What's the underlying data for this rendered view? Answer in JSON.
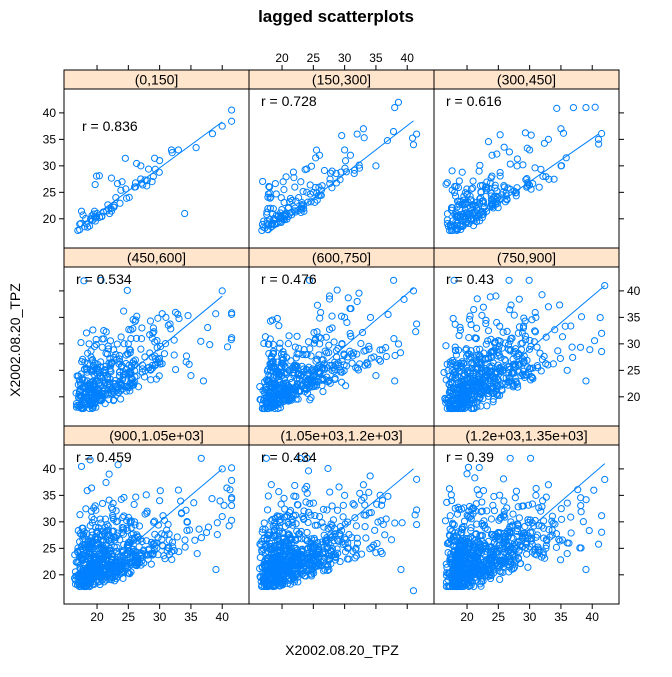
{
  "chart_data": {
    "type": "scatter",
    "title": "lagged scatterplots",
    "xlabel": "X2002.08.20_TPZ",
    "ylabel": "X2002.08.20_TPZ",
    "xlim": [
      16,
      43
    ],
    "ylim": [
      16,
      43
    ],
    "xticks": [
      20,
      25,
      30,
      35,
      40
    ],
    "yticks": [
      20,
      25,
      30,
      35,
      40
    ],
    "tick_labels": [
      "20",
      "25",
      "30",
      "35",
      "40"
    ],
    "grid": false,
    "colors": {
      "points": "#0080ff",
      "fit_line": "#0080ff",
      "strip_fill": "#ffe5cc",
      "frame": "#000000"
    },
    "panels": [
      {
        "strip": "(0,150]",
        "r_label": "r = 0.836",
        "r": 0.836,
        "n": 60,
        "seed": 11,
        "fit": {
          "x": [
            18,
            40
          ],
          "y": [
            19.2,
            38.3
          ]
        },
        "sample_points": [
          [
            18,
            18.5
          ],
          [
            19,
            20
          ],
          [
            20,
            21
          ],
          [
            21,
            21.3
          ],
          [
            22,
            21
          ],
          [
            23,
            24
          ],
          [
            24,
            27
          ],
          [
            26,
            26
          ],
          [
            27,
            30
          ],
          [
            29,
            28
          ],
          [
            30,
            31
          ],
          [
            32,
            32.5
          ],
          [
            33,
            33
          ],
          [
            34,
            21
          ],
          [
            40,
            37.5
          ]
        ]
      },
      {
        "strip": "(150,300]",
        "r_label": "r = 0.728",
        "r": 0.728,
        "n": 130,
        "seed": 23,
        "fit": {
          "x": [
            18,
            41
          ],
          "y": [
            17.5,
            38.5
          ]
        },
        "sample_points": [
          [
            18,
            26
          ],
          [
            20,
            20
          ],
          [
            21,
            22
          ],
          [
            23,
            27
          ],
          [
            25,
            25
          ],
          [
            26,
            32
          ],
          [
            28,
            29
          ],
          [
            30,
            33
          ],
          [
            32,
            36
          ],
          [
            33,
            37
          ],
          [
            35,
            30
          ],
          [
            38,
            41
          ],
          [
            41,
            34
          ]
        ]
      },
      {
        "strip": "(300,450]",
        "r_label": "r = 0.616",
        "r": 0.616,
        "n": 220,
        "seed": 37,
        "fit": {
          "x": [
            19,
            41
          ],
          "y": [
            18,
            36
          ]
        },
        "sample_points": [
          [
            19,
            18
          ],
          [
            21,
            20
          ],
          [
            22,
            23
          ],
          [
            24,
            32
          ],
          [
            26,
            26
          ],
          [
            28,
            30
          ],
          [
            30,
            33
          ],
          [
            33,
            35
          ],
          [
            35,
            37
          ],
          [
            37,
            41
          ],
          [
            39,
            41
          ],
          [
            41,
            35
          ]
        ]
      },
      {
        "strip": "(450,600]",
        "r_label": "r = 0.534",
        "r": 0.534,
        "n": 380,
        "seed": 41,
        "fit": {
          "x": [
            18,
            40
          ],
          "y": [
            17.5,
            39
          ]
        },
        "sample_points": [
          [
            18,
            19
          ],
          [
            19,
            21
          ],
          [
            21,
            23
          ],
          [
            23,
            28
          ],
          [
            25,
            30
          ],
          [
            27,
            29
          ],
          [
            29,
            33
          ],
          [
            31,
            35
          ],
          [
            35,
            24
          ],
          [
            37,
            23
          ],
          [
            40,
            40
          ]
        ]
      },
      {
        "strip": "(600,750]",
        "r_label": "r = 0.476",
        "r": 0.476,
        "n": 480,
        "seed": 53,
        "fit": {
          "x": [
            18,
            41
          ],
          "y": [
            17.5,
            40.5
          ]
        },
        "sample_points": [
          [
            18,
            20
          ],
          [
            20,
            22
          ],
          [
            22,
            26
          ],
          [
            24,
            28
          ],
          [
            26,
            30
          ],
          [
            28,
            33
          ],
          [
            30,
            35
          ],
          [
            32,
            38
          ],
          [
            35,
            24
          ],
          [
            38,
            23
          ],
          [
            41,
            40
          ]
        ]
      },
      {
        "strip": "(750,900]",
        "r_label": "r = 0.43",
        "r": 0.43,
        "n": 560,
        "seed": 61,
        "fit": {
          "x": [
            19,
            42
          ],
          "y": [
            18,
            41
          ]
        },
        "sample_points": [
          [
            19,
            19
          ],
          [
            21,
            22
          ],
          [
            23,
            27
          ],
          [
            25,
            29
          ],
          [
            27,
            31
          ],
          [
            29,
            33
          ],
          [
            31,
            35
          ],
          [
            33,
            37
          ],
          [
            36,
            25
          ],
          [
            39,
            23
          ],
          [
            42,
            41
          ]
        ]
      },
      {
        "strip": "(900,1.05e+03]",
        "r_label": "r = 0.459",
        "r": 0.459,
        "n": 640,
        "seed": 73,
        "fit": {
          "x": [
            18,
            40
          ],
          "y": [
            18,
            40
          ]
        },
        "sample_points": [
          [
            18,
            20
          ],
          [
            20,
            22
          ],
          [
            22,
            25
          ],
          [
            24,
            28
          ],
          [
            26,
            30
          ],
          [
            28,
            32
          ],
          [
            30,
            34
          ],
          [
            33,
            36
          ],
          [
            36,
            24
          ],
          [
            39,
            21
          ],
          [
            40,
            40
          ]
        ]
      },
      {
        "strip": "(1.05e+03,1.2e+03]",
        "r_label": "r = 0.434",
        "r": 0.434,
        "n": 700,
        "seed": 89,
        "fit": {
          "x": [
            18,
            41
          ],
          "y": [
            17.5,
            40
          ]
        },
        "sample_points": [
          [
            18,
            20
          ],
          [
            20,
            22
          ],
          [
            22,
            25
          ],
          [
            24,
            28
          ],
          [
            26,
            31
          ],
          [
            28,
            33
          ],
          [
            30,
            35
          ],
          [
            33,
            37
          ],
          [
            36,
            24
          ],
          [
            39,
            21
          ],
          [
            41,
            17
          ]
        ]
      },
      {
        "strip": "(1.2e+03,1.35e+03]",
        "r_label": "r = 0.39",
        "r": 0.39,
        "n": 760,
        "seed": 97,
        "fit": {
          "x": [
            19,
            42
          ],
          "y": [
            17.5,
            41
          ]
        },
        "sample_points": [
          [
            19,
            20
          ],
          [
            21,
            22
          ],
          [
            23,
            25
          ],
          [
            25,
            28
          ],
          [
            27,
            30
          ],
          [
            29,
            33
          ],
          [
            31,
            35
          ],
          [
            33,
            37
          ],
          [
            36,
            24
          ],
          [
            39,
            21
          ],
          [
            42,
            38
          ]
        ]
      }
    ]
  }
}
